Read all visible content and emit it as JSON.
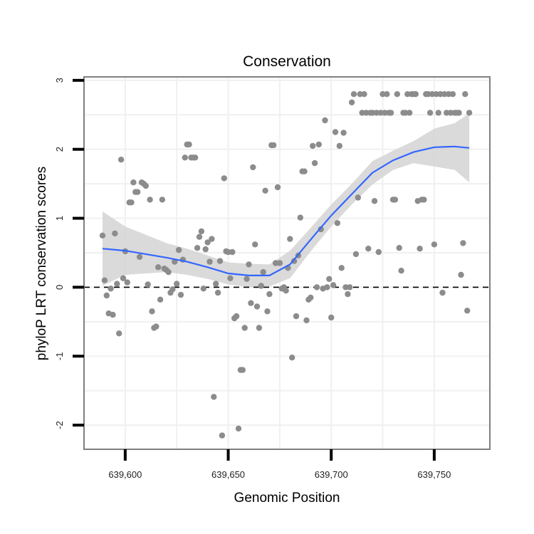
{
  "chart_data": {
    "type": "scatter",
    "title": "Conservation",
    "xlabel": "Genomic Position",
    "ylabel": "phyloP LRT conservation scores",
    "xlim": [
      639580,
      639777
    ],
    "ylim": [
      -2.35,
      3.05
    ],
    "x_ticks": [
      639600,
      639650,
      639700,
      639750
    ],
    "x_tick_labels": [
      "639,600",
      "639,650",
      "639,700",
      "639,750"
    ],
    "y_ticks": [
      -2,
      -1,
      0,
      1,
      2,
      3
    ],
    "y_tick_labels": [
      "-2",
      "-1",
      "0",
      "1",
      "2",
      "3"
    ],
    "grid": true,
    "reference_line": {
      "y": 0,
      "style": "dashed",
      "color": "#000000"
    },
    "colors": {
      "points": "#8c8c8c",
      "smooth_line": "#3366ff",
      "confidence_band": "#d3d3d3",
      "panel_border": "#7f7f7f",
      "grid": "#f0f0f0"
    },
    "series": [
      {
        "type": "scatter",
        "points": [
          [
            639589,
            0.75
          ],
          [
            639590,
            0.1
          ],
          [
            639591,
            -0.12
          ],
          [
            639592,
            -0.38
          ],
          [
            639593,
            -0.02
          ],
          [
            639594,
            -0.4
          ],
          [
            639595,
            0.78
          ],
          [
            639596,
            0.05
          ],
          [
            639597,
            -0.67
          ],
          [
            639598,
            1.85
          ],
          [
            639599,
            0.13
          ],
          [
            639600,
            0.52
          ],
          [
            639601,
            0.07
          ],
          [
            639602,
            1.23
          ],
          [
            639603,
            1.23
          ],
          [
            639604,
            1.52
          ],
          [
            639605,
            1.38
          ],
          [
            639606,
            1.38
          ],
          [
            639607,
            0.44
          ],
          [
            639608,
            1.52
          ],
          [
            639609,
            1.5
          ],
          [
            639610,
            1.47
          ],
          [
            639611,
            0.04
          ],
          [
            639612,
            1.27
          ],
          [
            639613,
            -0.35
          ],
          [
            639614,
            -0.59
          ],
          [
            639615,
            -0.57
          ],
          [
            639616,
            0.29
          ],
          [
            639617,
            -0.18
          ],
          [
            639618,
            1.27
          ],
          [
            639619,
            0.27
          ],
          [
            639620,
            0.25
          ],
          [
            639621,
            0.22
          ],
          [
            639622,
            -0.08
          ],
          [
            639623,
            -0.03
          ],
          [
            639624,
            0.37
          ],
          [
            639625,
            0.05
          ],
          [
            639626,
            0.54
          ],
          [
            639627,
            -0.11
          ],
          [
            639628,
            0.4
          ],
          [
            639629,
            1.88
          ],
          [
            639630,
            2.07
          ],
          [
            639631,
            2.07
          ],
          [
            639632,
            1.88
          ],
          [
            639633,
            1.88
          ],
          [
            639634,
            1.88
          ],
          [
            639635,
            0.57
          ],
          [
            639636,
            0.73
          ],
          [
            639637,
            0.81
          ],
          [
            639638,
            -0.02
          ],
          [
            639639,
            0.55
          ],
          [
            639640,
            0.65
          ],
          [
            639641,
            0.37
          ],
          [
            639642,
            0.7
          ],
          [
            639643,
            -1.59
          ],
          [
            639644,
            0.05
          ],
          [
            639645,
            -0.08
          ],
          [
            639646,
            0.38
          ],
          [
            639647,
            -2.15
          ],
          [
            639648,
            1.58
          ],
          [
            639649,
            0.52
          ],
          [
            639650,
            0.51
          ],
          [
            639651,
            0.13
          ],
          [
            639652,
            0.51
          ],
          [
            639653,
            -0.45
          ],
          [
            639654,
            -0.42
          ],
          [
            639655,
            -2.05
          ],
          [
            639656,
            -1.2
          ],
          [
            639657,
            -1.2
          ],
          [
            639658,
            -0.59
          ],
          [
            639659,
            0.12
          ],
          [
            639660,
            0.33
          ],
          [
            639661,
            -0.23
          ],
          [
            639662,
            1.74
          ],
          [
            639663,
            0.62
          ],
          [
            639664,
            -0.28
          ],
          [
            639665,
            -0.59
          ],
          [
            639666,
            0.02
          ],
          [
            639667,
            0.22
          ],
          [
            639668,
            1.4
          ],
          [
            639669,
            -0.35
          ],
          [
            639670,
            -0.1
          ],
          [
            639671,
            2.06
          ],
          [
            639672,
            2.06
          ],
          [
            639673,
            0.35
          ],
          [
            639674,
            1.45
          ],
          [
            639675,
            0.35
          ],
          [
            639676,
            -0.02
          ],
          [
            639677,
            0.0
          ],
          [
            639678,
            -0.05
          ],
          [
            639679,
            0.28
          ],
          [
            639680,
            0.7
          ],
          [
            639681,
            -1.02
          ],
          [
            639682,
            0.38
          ],
          [
            639683,
            -0.42
          ],
          [
            639684,
            0.46
          ],
          [
            639685,
            1.01
          ],
          [
            639686,
            1.68
          ],
          [
            639687,
            1.68
          ],
          [
            639688,
            -0.48
          ],
          [
            639689,
            -0.18
          ],
          [
            639690,
            -0.15
          ],
          [
            639691,
            2.05
          ],
          [
            639692,
            1.8
          ],
          [
            639693,
            0.0
          ],
          [
            639694,
            2.07
          ],
          [
            639695,
            0.84
          ],
          [
            639696,
            -0.02
          ],
          [
            639697,
            2.42
          ],
          [
            639698,
            0.0
          ],
          [
            639699,
            0.12
          ],
          [
            639700,
            -0.44
          ],
          [
            639701,
            0.03
          ],
          [
            639702,
            2.25
          ],
          [
            639703,
            0.93
          ],
          [
            639704,
            2.05
          ],
          [
            639705,
            0.28
          ],
          [
            639706,
            2.24
          ],
          [
            639707,
            0.0
          ],
          [
            639708,
            -0.1
          ],
          [
            639709,
            0.0
          ],
          [
            639710,
            2.68
          ],
          [
            639711,
            2.8
          ],
          [
            639712,
            0.48
          ],
          [
            639713,
            1.3
          ],
          [
            639714,
            2.8
          ],
          [
            639715,
            2.53
          ],
          [
            639716,
            2.8
          ],
          [
            639717,
            2.53
          ],
          [
            639718,
            0.56
          ],
          [
            639719,
            2.53
          ],
          [
            639720,
            2.53
          ],
          [
            639721,
            1.25
          ],
          [
            639722,
            2.53
          ],
          [
            639723,
            0.51
          ],
          [
            639724,
            2.53
          ],
          [
            639725,
            2.8
          ],
          [
            639726,
            2.53
          ],
          [
            639727,
            2.8
          ],
          [
            639728,
            2.53
          ],
          [
            639729,
            2.53
          ],
          [
            639730,
            1.27
          ],
          [
            639731,
            1.27
          ],
          [
            639732,
            2.8
          ],
          [
            639733,
            0.57
          ],
          [
            639734,
            0.24
          ],
          [
            639735,
            2.53
          ],
          [
            639736,
            2.53
          ],
          [
            639737,
            2.8
          ],
          [
            639738,
            2.53
          ],
          [
            639739,
            2.8
          ],
          [
            639740,
            2.8
          ],
          [
            639741,
            2.8
          ],
          [
            639742,
            1.25
          ],
          [
            639743,
            0.56
          ],
          [
            639744,
            1.27
          ],
          [
            639745,
            1.27
          ],
          [
            639746,
            2.8
          ],
          [
            639747,
            2.8
          ],
          [
            639748,
            2.53
          ],
          [
            639749,
            2.8
          ],
          [
            639750,
            0.62
          ],
          [
            639751,
            2.8
          ],
          [
            639752,
            2.53
          ],
          [
            639753,
            2.8
          ],
          [
            639754,
            -0.08
          ],
          [
            639755,
            2.8
          ],
          [
            639756,
            2.53
          ],
          [
            639757,
            2.8
          ],
          [
            639758,
            2.53
          ],
          [
            639759,
            2.8
          ],
          [
            639760,
            2.53
          ],
          [
            639761,
            2.53
          ],
          [
            639762,
            2.53
          ],
          [
            639763,
            0.18
          ],
          [
            639764,
            0.64
          ],
          [
            639765,
            2.8
          ],
          [
            639766,
            -0.34
          ],
          [
            639767,
            2.53
          ]
        ]
      },
      {
        "type": "line",
        "x": [
          639589,
          639600,
          639610,
          639620,
          639630,
          639640,
          639650,
          639660,
          639670,
          639680,
          639690,
          639700,
          639710,
          639720,
          639730,
          639740,
          639750,
          639760,
          639767
        ],
        "y": [
          0.56,
          0.53,
          0.48,
          0.43,
          0.37,
          0.29,
          0.2,
          0.17,
          0.17,
          0.33,
          0.69,
          1.04,
          1.35,
          1.66,
          1.84,
          1.96,
          2.03,
          2.04,
          2.02
        ]
      },
      {
        "type": "area",
        "x": [
          639589,
          639600,
          639610,
          639620,
          639630,
          639640,
          639650,
          639660,
          639670,
          639680,
          639690,
          639700,
          639710,
          639720,
          639730,
          639740,
          639750,
          639760,
          639767
        ],
        "lower": [
          0.02,
          0.18,
          0.2,
          0.22,
          0.18,
          0.12,
          0.04,
          0.0,
          0.01,
          0.13,
          0.52,
          0.88,
          1.2,
          1.49,
          1.7,
          1.8,
          1.75,
          1.7,
          1.52
        ],
        "upper": [
          1.1,
          0.88,
          0.76,
          0.64,
          0.56,
          0.46,
          0.36,
          0.34,
          0.33,
          0.53,
          0.86,
          1.2,
          1.5,
          1.83,
          1.98,
          2.12,
          2.3,
          2.38,
          2.52
        ]
      }
    ]
  }
}
